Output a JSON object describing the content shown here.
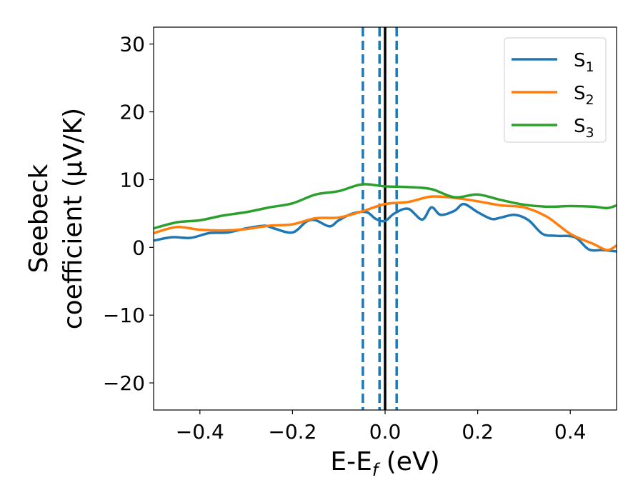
{
  "chart_data": {
    "type": "line",
    "xlabel": "E-E",
    "xlabel_sub": "f",
    "xlabel_unit": " (eV)",
    "ylabel_line1": "Seebeck",
    "ylabel_line2": "coefficient  (μV/K)",
    "xlim": [
      -0.5,
      0.5
    ],
    "ylim": [
      -24,
      32.5
    ],
    "xticks": [
      -0.4,
      -0.2,
      0.0,
      0.2,
      0.4
    ],
    "xtick_labels": [
      "−0.4",
      "−0.2",
      "0.0",
      "0.2",
      "0.4"
    ],
    "yticks": [
      -20,
      -10,
      0,
      10,
      20,
      30
    ],
    "ytick_labels": [
      "−20",
      "−10",
      "0",
      "10",
      "20",
      "30"
    ],
    "grid": false,
    "legend_position": "top-right",
    "vertical_lines": [
      {
        "x": -0.048,
        "style": "dashed",
        "color": "#1f77b4"
      },
      {
        "x": -0.012,
        "style": "dashed",
        "color": "#1f77b4"
      },
      {
        "x": 0.0,
        "style": "solid",
        "color": "#000000"
      },
      {
        "x": 0.025,
        "style": "dashed",
        "color": "#1f77b4"
      }
    ],
    "series": [
      {
        "name": "S",
        "name_sub": "1",
        "color": "#1f77b4",
        "x": [
          -0.5,
          -0.46,
          -0.42,
          -0.38,
          -0.34,
          -0.3,
          -0.26,
          -0.24,
          -0.2,
          -0.17,
          -0.15,
          -0.12,
          -0.1,
          -0.07,
          -0.04,
          -0.02,
          0.0,
          0.02,
          0.05,
          0.08,
          0.1,
          0.12,
          0.15,
          0.17,
          0.2,
          0.23,
          0.25,
          0.28,
          0.31,
          0.34,
          0.37,
          0.41,
          0.44,
          0.47,
          0.5
        ],
        "values": [
          1.0,
          1.5,
          1.4,
          2.1,
          2.2,
          2.8,
          3.2,
          2.8,
          2.2,
          3.8,
          4.0,
          3.1,
          4.0,
          5.0,
          5.2,
          4.2,
          3.9,
          5.0,
          5.7,
          4.1,
          5.9,
          4.8,
          5.4,
          6.4,
          5.2,
          4.2,
          4.4,
          4.8,
          4.0,
          2.0,
          1.7,
          1.5,
          -0.3,
          -0.4,
          -0.6
        ]
      },
      {
        "name": "S",
        "name_sub": "2",
        "color": "#ff7f0e",
        "x": [
          -0.5,
          -0.45,
          -0.4,
          -0.35,
          -0.3,
          -0.25,
          -0.2,
          -0.15,
          -0.1,
          -0.05,
          0.0,
          0.05,
          0.1,
          0.15,
          0.2,
          0.25,
          0.3,
          0.35,
          0.4,
          0.45,
          0.48,
          0.5
        ],
        "values": [
          2.1,
          3.0,
          2.6,
          2.5,
          2.7,
          3.2,
          3.4,
          4.3,
          4.4,
          5.3,
          6.4,
          6.7,
          7.5,
          7.3,
          6.8,
          6.2,
          5.9,
          4.5,
          2.0,
          0.5,
          -0.4,
          0.3
        ]
      },
      {
        "name": "S",
        "name_sub": "3",
        "color": "#2ca02c",
        "x": [
          -0.5,
          -0.45,
          -0.4,
          -0.35,
          -0.3,
          -0.25,
          -0.2,
          -0.15,
          -0.1,
          -0.05,
          0.0,
          0.05,
          0.1,
          0.15,
          0.2,
          0.25,
          0.3,
          0.35,
          0.4,
          0.45,
          0.48,
          0.5
        ],
        "values": [
          2.8,
          3.7,
          4.0,
          4.7,
          5.2,
          5.9,
          6.5,
          7.8,
          8.3,
          9.3,
          9.0,
          8.9,
          8.6,
          7.4,
          7.8,
          7.0,
          6.3,
          6.0,
          6.1,
          6.0,
          5.8,
          6.2
        ]
      }
    ]
  }
}
